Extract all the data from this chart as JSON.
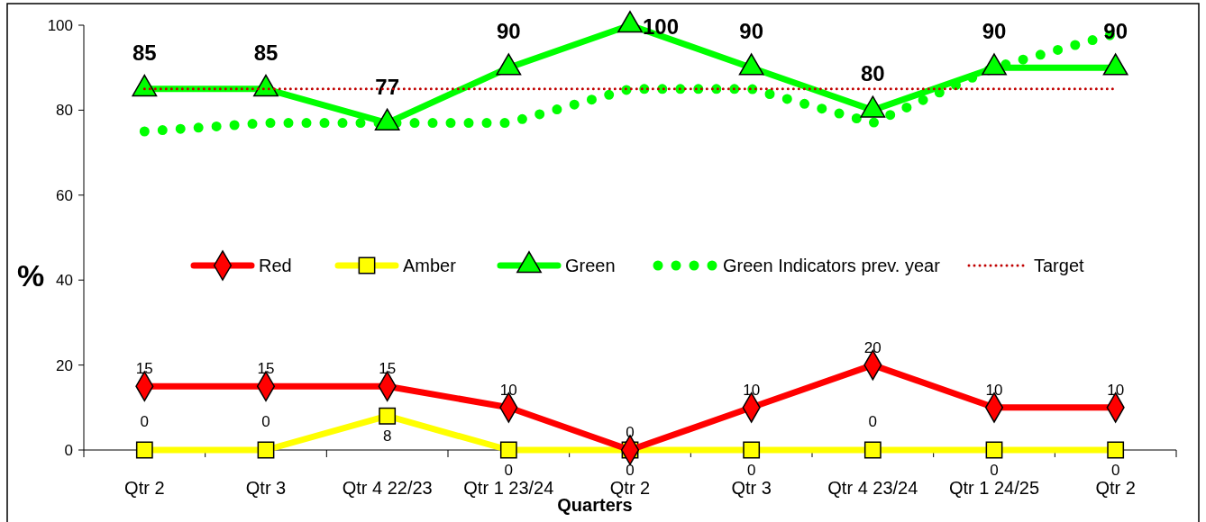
{
  "chart_data": {
    "type": "line",
    "xlabel": "Quarters",
    "ylabel": "%",
    "categories": [
      "Qtr 2",
      "Qtr 3",
      "Qtr 4 22/23",
      "Qtr 1 23/24",
      "Qtr 2",
      "Qtr 3",
      "Qtr 4 23/24",
      "Qtr 1 24/25",
      "Qtr 2"
    ],
    "series": [
      {
        "name": "Red",
        "color": "#ff0000",
        "marker": "diamond",
        "line_style": "solid",
        "data_labels": true,
        "values": [
          15,
          15,
          15,
          10,
          0,
          10,
          20,
          10,
          10
        ]
      },
      {
        "name": "Amber",
        "color": "#ffff00",
        "marker": "square",
        "line_style": "solid",
        "data_labels": true,
        "values": [
          0,
          0,
          8,
          0,
          0,
          0,
          0,
          0,
          0
        ]
      },
      {
        "name": "Green",
        "color": "#00ff00",
        "marker": "triangle",
        "line_style": "solid",
        "data_labels": true,
        "values": [
          85,
          85,
          77,
          90,
          100,
          90,
          80,
          90,
          90
        ]
      },
      {
        "name": "Green Indicators prev. year",
        "color": "#00ff00",
        "marker": "none",
        "line_style": "dotted",
        "values": [
          75,
          77,
          77,
          77,
          85,
          85,
          77,
          90,
          98
        ]
      },
      {
        "name": "Target",
        "color": "#c00000",
        "marker": "none",
        "line_style": "dotted",
        "values": [
          85,
          85,
          85,
          85,
          85,
          85,
          85,
          85,
          85
        ]
      }
    ],
    "ylim": [
      0,
      100
    ],
    "yticks": [
      0,
      20,
      40,
      60,
      80,
      100
    ],
    "grid": false,
    "legend": "center"
  }
}
